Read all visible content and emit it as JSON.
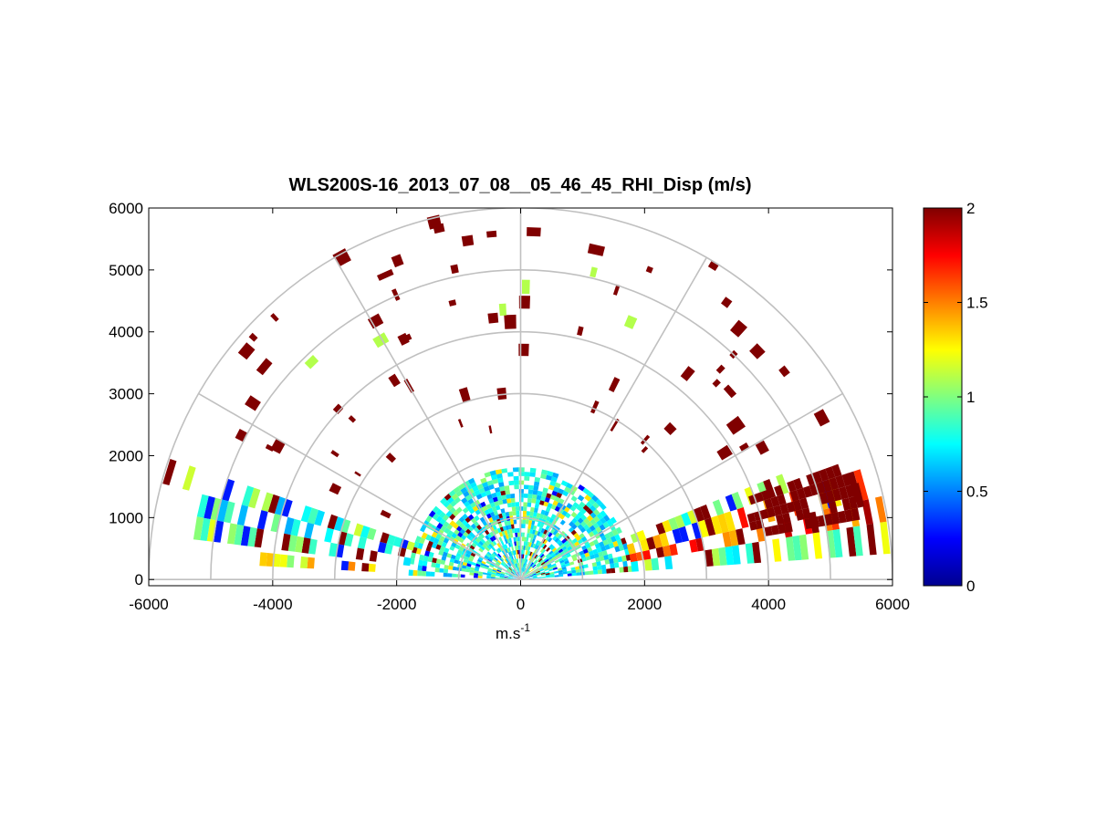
{
  "chart_data": {
    "type": "heatmap",
    "subtype": "polar-rhi-scan",
    "title": "WLS200S-16_2013_07_08__05_46_45_RHI_Disp (m/s)",
    "xlabel_base": "m.s",
    "xlabel_exponent": "-1",
    "ylabel": "",
    "xlim": [
      -6000,
      6000
    ],
    "ylim": [
      -100,
      6000
    ],
    "xticks": [
      -6000,
      -4000,
      -2000,
      0,
      2000,
      4000,
      6000
    ],
    "xtick_labels": [
      "-6000",
      "-4000",
      "-2000",
      "0",
      "2000",
      "4000",
      "6000"
    ],
    "yticks": [
      0,
      1000,
      2000,
      3000,
      4000,
      5000,
      6000
    ],
    "ytick_labels": [
      "0",
      "1000",
      "2000",
      "3000",
      "4000",
      "5000",
      "6000"
    ],
    "polar_grid": {
      "range_rings": [
        1000,
        2000,
        3000,
        4000,
        5000,
        6000
      ],
      "angle_spokes_deg": [
        0,
        30,
        60,
        90,
        120,
        150,
        180
      ]
    },
    "colorbar": {
      "colormap": "jet",
      "lim": [
        0,
        2
      ],
      "ticks": [
        0,
        0.5,
        1,
        1.5,
        2
      ],
      "tick_labels": [
        "0",
        "0.5",
        "1",
        "1.5",
        "2"
      ]
    },
    "data_approx": {
      "note_range_units": "m",
      "dense_near_field_max_range": 1800,
      "high_value_color_value": 2,
      "sectors": [
        {
          "elev_deg_from": 10,
          "elev_deg_to": 20,
          "range_from": 1500,
          "range_to": 6000,
          "typical_value": 1.8
        },
        {
          "elev_deg_from": 160,
          "elev_deg_to": 172,
          "range_from": 800,
          "range_to": 6000,
          "typical_value": 0.8
        }
      ]
    }
  },
  "colors": {
    "grid": "#c0c0c0",
    "axes": "#000000",
    "background": "#ffffff"
  }
}
